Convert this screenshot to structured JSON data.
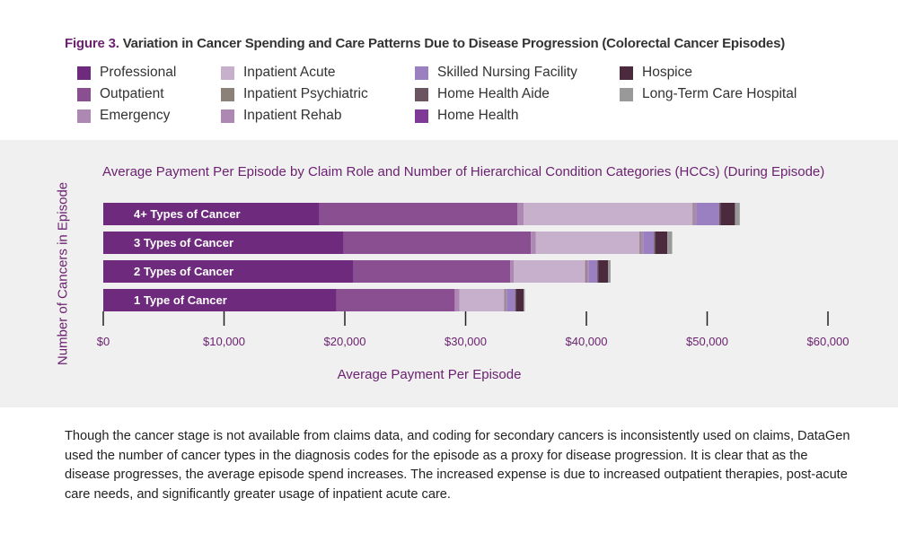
{
  "figure": {
    "label": "Figure 3.",
    "title": "Variation in Cancer Spending and Care Patterns Due to Disease Progression (Colorectal Cancer Episodes)"
  },
  "legend": [
    {
      "name": "Professional",
      "color": "#6e2a7d"
    },
    {
      "name": "Outpatient",
      "color": "#8a4f90"
    },
    {
      "name": "Emergency",
      "color": "#ad88b2"
    },
    {
      "name": "Inpatient Acute",
      "color": "#c7b0cc"
    },
    {
      "name": "Inpatient Psychiatric",
      "color": "#8c8178"
    },
    {
      "name": "Inpatient Rehab",
      "color": "#ad88b2"
    },
    {
      "name": "Skilled Nursing Facility",
      "color": "#9a80c0"
    },
    {
      "name": "Home Health Aide",
      "color": "#6b5560"
    },
    {
      "name": "Home Health",
      "color": "#7e3a96"
    },
    {
      "name": "Hospice",
      "color": "#4a2a3c"
    },
    {
      "name": "Long-Term Care Hospital",
      "color": "#999999"
    }
  ],
  "description": "Though the cancer stage is not available from claims data, and coding for secondary cancers is inconsistently used on claims, DataGen used the number of cancer types in the diagnosis codes for the episode as a proxy for disease progression. It is clear that as the disease progresses, the average episode spend increases. The increased expense is due to increased outpatient therapies, post-acute care needs, and significantly greater usage of inpatient acute care.",
  "chart_data": {
    "type": "bar",
    "orientation": "horizontal",
    "stacked": true,
    "title": "Average Payment Per Episode by Claim Role and Number of Hierarchical Condition Categories (HCCs) (During Episode)",
    "xlabel": "Average Payment Per Episode",
    "ylabel": "Number of Cancers in Episode",
    "xlim": [
      0,
      60000
    ],
    "xticks": [
      0,
      10000,
      20000,
      30000,
      40000,
      50000,
      60000
    ],
    "xtick_labels": [
      "$0",
      "$10,000",
      "$20,000",
      "$30,000",
      "$40,000",
      "$50,000",
      "$60,000"
    ],
    "categories": [
      "4+ Types of Cancer",
      "3 Types of Cancer",
      "2 Types of Cancer",
      "1 Type of Cancer"
    ],
    "series": [
      {
        "name": "Professional",
        "color": "#6e2a7d",
        "values": [
          17900,
          19900,
          20700,
          19300
        ]
      },
      {
        "name": "Outpatient",
        "color": "#8a4f90",
        "values": [
          16400,
          15500,
          13000,
          9800
        ]
      },
      {
        "name": "Emergency",
        "color": "#ad88b2",
        "values": [
          500,
          400,
          300,
          400
        ]
      },
      {
        "name": "Inpatient Acute",
        "color": "#c7b0cc",
        "values": [
          14000,
          8600,
          5900,
          3700
        ]
      },
      {
        "name": "Inpatient Psychiatric",
        "color": "#8c8178",
        "values": [
          100,
          100,
          100,
          100
        ]
      },
      {
        "name": "Inpatient Rehab",
        "color": "#ad88b2",
        "values": [
          200,
          200,
          200,
          100
        ]
      },
      {
        "name": "Skilled Nursing Facility",
        "color": "#9a80c0",
        "values": [
          1900,
          900,
          700,
          700
        ]
      },
      {
        "name": "Home Health Aide",
        "color": "#6b5560",
        "values": [
          100,
          100,
          100,
          100
        ]
      },
      {
        "name": "Home Health",
        "color": "#7e3a96",
        "values": [
          0,
          0,
          0,
          0
        ]
      },
      {
        "name": "Hospice",
        "color": "#4a2a3c",
        "values": [
          1200,
          1000,
          800,
          600
        ]
      },
      {
        "name": "Long-Term Care Hospital",
        "color": "#999999",
        "values": [
          400,
          400,
          200,
          100
        ]
      }
    ]
  }
}
